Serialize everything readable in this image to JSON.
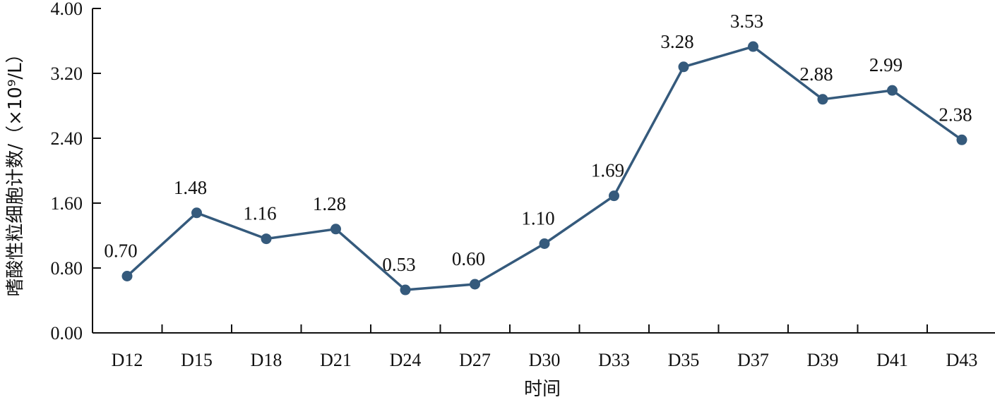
{
  "chart_data": {
    "type": "line",
    "categories": [
      "D12",
      "D15",
      "D18",
      "D21",
      "D24",
      "D27",
      "D30",
      "D33",
      "D35",
      "D37",
      "D39",
      "D41",
      "D43"
    ],
    "series": [
      {
        "values": [
          0.7,
          1.48,
          1.16,
          1.28,
          0.53,
          0.6,
          1.1,
          1.69,
          3.28,
          3.53,
          2.88,
          2.99,
          2.38
        ]
      }
    ],
    "data_labels": [
      "0.70",
      "1.48",
      "1.16",
      "1.28",
      "0.53",
      "0.60",
      "1.10",
      "1.69",
      "3.28",
      "3.53",
      "2.88",
      "2.99",
      "2.38"
    ],
    "y_ticks": [
      "0.00",
      "0.80",
      "1.60",
      "2.40",
      "3.20",
      "4.00"
    ],
    "ylim": [
      0,
      4
    ],
    "xlabel": "时间",
    "ylabel": "嗜酸性粒细胞计数/（×10⁹/L）",
    "grid": false,
    "legend": false,
    "line_color": "#355a7c",
    "axis_color": "#111111"
  }
}
